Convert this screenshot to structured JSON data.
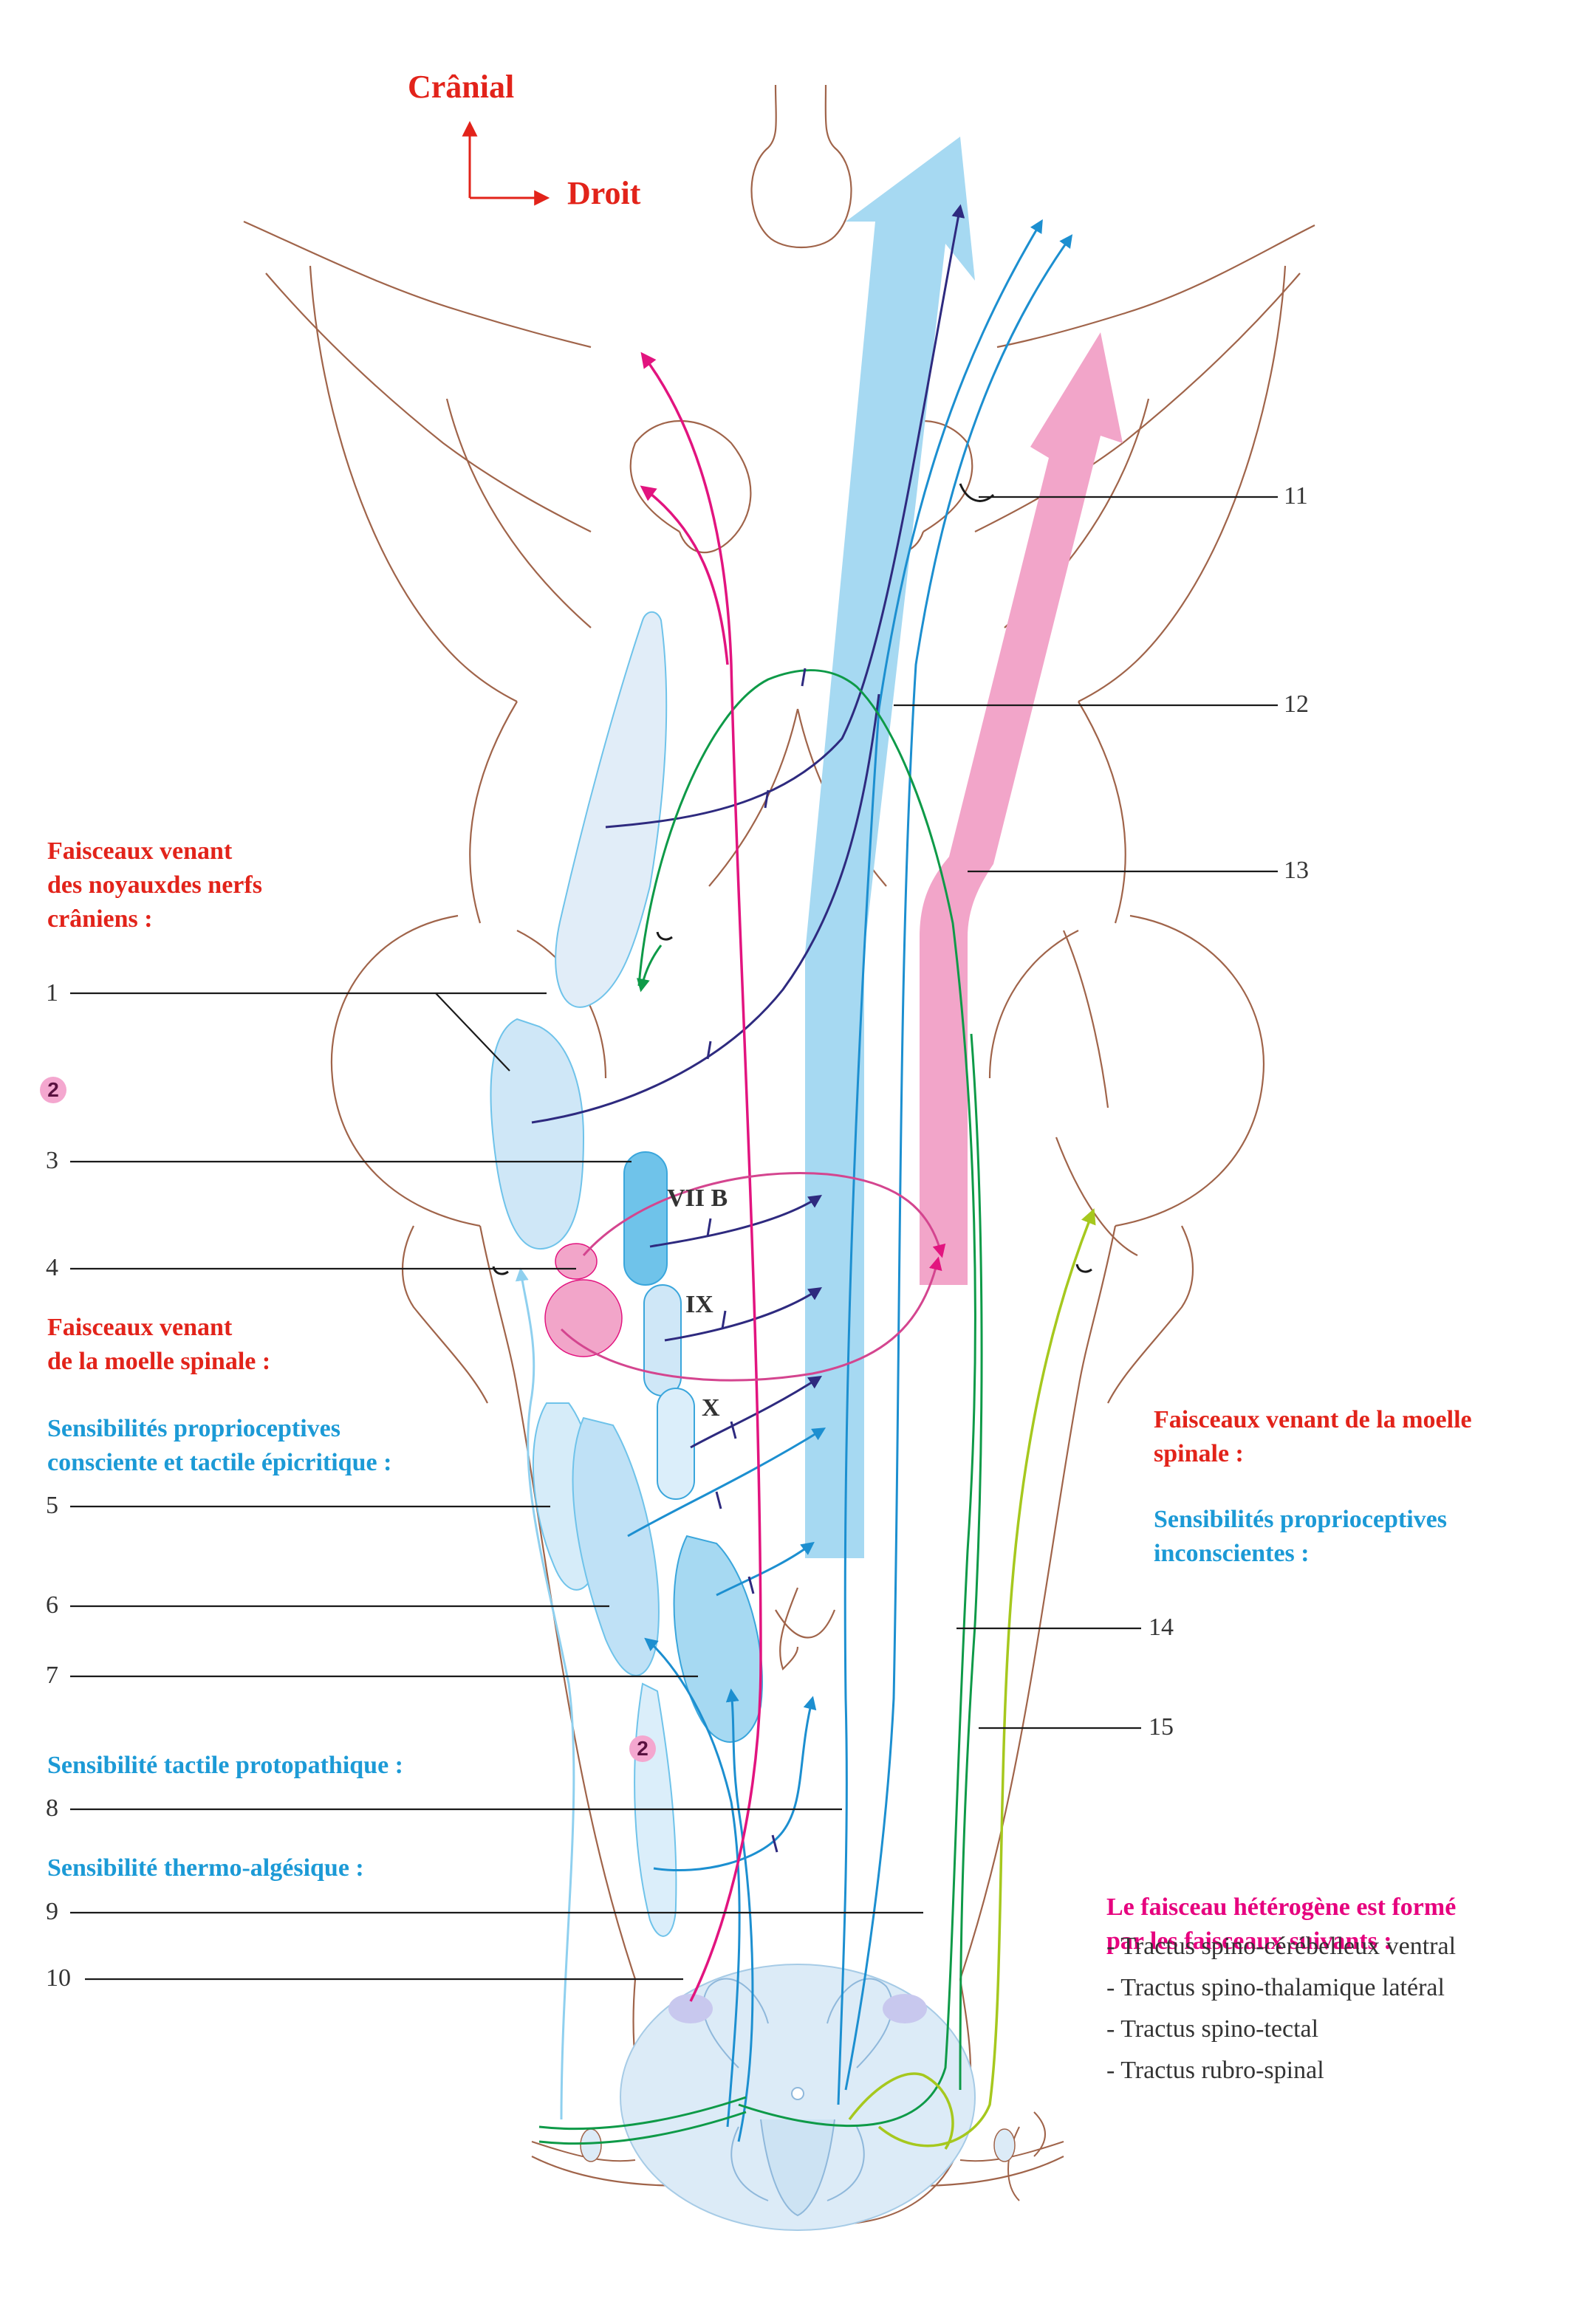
{
  "orientation": {
    "cranial": "Crânial",
    "right": "Droit"
  },
  "nerve_labels": [
    "VII B",
    "IX",
    "X"
  ],
  "left_numbers": [
    "1",
    "2",
    "3",
    "4",
    "5",
    "6",
    "7",
    "8",
    "9",
    "10"
  ],
  "right_numbers": [
    "11",
    "12",
    "13",
    "14",
    "15"
  ],
  "left_headings": {
    "cranial_nuclei": [
      "Faisceaux venant",
      "des noyauxdes nerfs",
      "crâniens :"
    ],
    "spinal_cord": [
      "Faisceaux venant",
      "de la moelle spinale :"
    ],
    "proprio_conscious": [
      "Sensibilités proprioceptives",
      "consciente et tactile épicritique :"
    ],
    "protopathic": "Sensibilité tactile protopathique :",
    "thermo": "Sensibilité thermo-algésique :"
  },
  "right_headings": {
    "spinal_cord": [
      "Faisceaux venant de la moelle",
      "spinale :"
    ],
    "proprio_unconscious": [
      "Sensibilités proprioceptives",
      "inconscientes :"
    ],
    "heterogeneous": [
      "Le faisceau hétérogène est formé",
      "par les faisceaux suivants :"
    ]
  },
  "tract_list": [
    "- Tractus spino-cérébelleux ventral",
    "- Tractus spino-thalamique latéral",
    "- Tractus spino-tectal",
    "- Tractus rubro-spinal"
  ],
  "colors": {
    "outline": "#a0644a",
    "blue_fill": "#a6d9f2",
    "dark_blue": "#2e2a7f",
    "blue_line": "#1c8fd0",
    "pink": "#f2a5c9",
    "magenta": "#e2147f",
    "green": "#0e9a48",
    "lime": "#a6c81e",
    "red_label": "#e2231a",
    "cyan_label": "#1c9ad6"
  }
}
